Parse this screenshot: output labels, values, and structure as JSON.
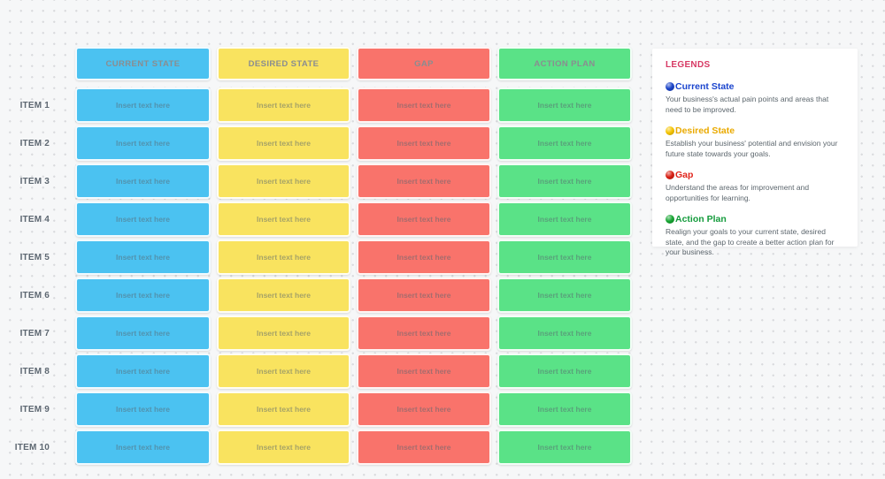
{
  "board": {
    "columns": [
      {
        "id": "current-state",
        "label": "CURRENT STATE",
        "color": "#4BC2F1"
      },
      {
        "id": "desired-state",
        "label": "DESIRED STATE",
        "color": "#F9E35F"
      },
      {
        "id": "gap",
        "label": "GAP",
        "color": "#F9736B"
      },
      {
        "id": "action-plan",
        "label": "ACTION PLAN",
        "color": "#5AE287"
      }
    ],
    "row_labels": [
      "ITEM 1",
      "ITEM 2",
      "ITEM 3",
      "ITEM 4",
      "ITEM 5",
      "ITEM 6",
      "ITEM 7",
      "ITEM 8",
      "ITEM 9",
      "ITEM 10"
    ],
    "cell_placeholder": "Insert text here"
  },
  "legend": {
    "title": "LEGENDS",
    "title_color": "#D73964",
    "entries": [
      {
        "label": "Current State",
        "label_color": "#1B45CE",
        "dot_color": "#1A43C8",
        "dot_icon": "blue-circle-icon",
        "description": "Your business's actual pain points and areas that need to be improved."
      },
      {
        "label": "Desired State",
        "label_color": "#EAAA00",
        "dot_color": "#F5C400",
        "dot_icon": "yellow-circle-icon",
        "description": "Establish your business' potential and envision your future state towards your goals."
      },
      {
        "label": "Gap",
        "label_color": "#E0241B",
        "dot_color": "#D81E12",
        "dot_icon": "red-circle-icon",
        "description": "Understand the areas for improvement and opportunities for learning."
      },
      {
        "label": "Action Plan",
        "label_color": "#149B3C",
        "dot_color": "#16A532",
        "dot_icon": "green-circle-icon",
        "description": "Realign your goals to your current state, desired state, and the gap to create a better action plan for your business."
      }
    ]
  }
}
